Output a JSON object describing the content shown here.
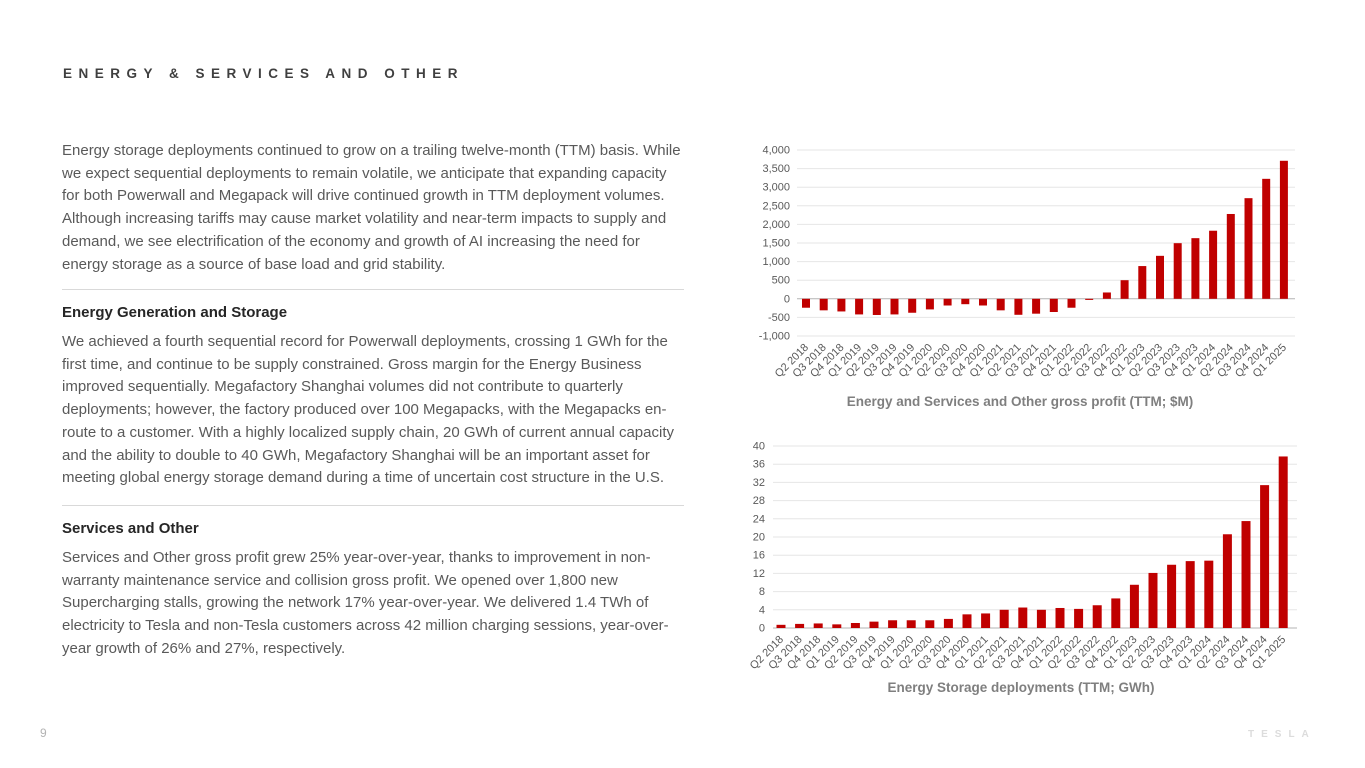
{
  "page": {
    "title": "ENERGY & SERVICES AND OTHER",
    "page_number": "9",
    "brand_wordmark": "TESLA"
  },
  "left_column": {
    "intro_paragraph": "Energy storage deployments continued to grow on a trailing twelve-month (TTM) basis. While we expect sequential deployments to remain volatile, we anticipate that expanding capacity for both Powerwall and Megapack will drive continued growth in TTM deployment volumes. Although increasing tariffs may cause market volatility and near-term impacts to supply and demand, we see electrification of the economy and growth of AI increasing the need for energy storage as a source of base load and grid stability.",
    "sections": [
      {
        "heading": "Energy Generation and Storage",
        "body": "We achieved a fourth sequential record for Powerwall deployments, crossing 1 GWh for the first time, and continue to be supply constrained. Gross margin for the Energy Business improved sequentially. Megafactory Shanghai volumes did not contribute to quarterly deployments; however, the factory produced over 100 Megapacks, with the Megapacks en-route to a customer. With a highly localized supply chain, 20 GWh of current annual capacity and the ability to double to 40 GWh, Megafactory Shanghai will be an important asset for meeting global energy storage demand during a time of uncertain cost structure in the U.S."
      },
      {
        "heading": "Services and Other",
        "body": "Services and Other gross profit grew 25% year-over-year, thanks to improvement in non-warranty maintenance service and collision gross profit. We opened over 1,800 new Supercharging stalls, growing the network 17% year-over-year. We delivered 1.4 TWh of electricity to Tesla and non-Tesla customers across 42 million charging sessions, year-over-year growth of 26% and 27%, respectively."
      }
    ]
  },
  "chart_data": [
    {
      "type": "bar",
      "title": "Energy and Services and Other gross profit (TTM; $M)",
      "categories": [
        "Q2 2018",
        "Q3 2018",
        "Q4 2018",
        "Q1 2019",
        "Q2 2019",
        "Q3 2019",
        "Q4 2019",
        "Q1 2020",
        "Q2 2020",
        "Q3 2020",
        "Q4 2020",
        "Q1 2021",
        "Q2 2021",
        "Q3 2021",
        "Q4 2021",
        "Q1 2022",
        "Q2 2022",
        "Q3 2022",
        "Q4 2022",
        "Q1 2023",
        "Q2 2023",
        "Q3 2023",
        "Q4 2023",
        "Q1 2024",
        "Q2 2024",
        "Q3 2024",
        "Q4 2024",
        "Q1 2025"
      ],
      "values": [
        -240,
        -310,
        -340,
        -420,
        -435,
        -420,
        -375,
        -285,
        -180,
        -145,
        -180,
        -310,
        -430,
        -400,
        -355,
        -240,
        -30,
        170,
        500,
        880,
        1155,
        1495,
        1630,
        1830,
        2280,
        2705,
        3225,
        3710
      ],
      "xlabel": "",
      "ylabel": "",
      "ylim": [
        -1000,
        4000
      ],
      "ytick_step": 500,
      "grid": true,
      "legend": "none",
      "bar_color": "#c00000",
      "axis_color": "#b3b3b3",
      "grid_color": "#e6e6e6",
      "text_color": "#595959",
      "title_color": "#7f7f7f"
    },
    {
      "type": "bar",
      "title": "Energy Storage deployments (TTM; GWh)",
      "categories": [
        "Q2 2018",
        "Q3 2018",
        "Q4 2018",
        "Q1 2019",
        "Q2 2019",
        "Q3 2019",
        "Q4 2019",
        "Q1 2020",
        "Q2 2020",
        "Q3 2020",
        "Q4 2020",
        "Q1 2021",
        "Q2 2021",
        "Q3 2021",
        "Q4 2021",
        "Q1 2022",
        "Q2 2022",
        "Q3 2022",
        "Q4 2022",
        "Q1 2023",
        "Q2 2023",
        "Q3 2023",
        "Q4 2023",
        "Q1 2024",
        "Q2 2024",
        "Q3 2024",
        "Q4 2024",
        "Q1 2025"
      ],
      "values": [
        0.7,
        0.9,
        1.0,
        0.8,
        1.1,
        1.4,
        1.7,
        1.7,
        1.7,
        2.0,
        3.0,
        3.2,
        4.0,
        4.5,
        4.0,
        4.4,
        4.2,
        5.0,
        6.5,
        9.5,
        12.1,
        13.9,
        14.7,
        14.8,
        20.6,
        23.5,
        31.4,
        37.7
      ],
      "xlabel": "",
      "ylabel": "",
      "ylim": [
        0,
        40
      ],
      "ytick_step": 4,
      "grid": true,
      "legend": "none",
      "bar_color": "#c00000",
      "axis_color": "#b3b3b3",
      "grid_color": "#e6e6e6",
      "text_color": "#595959",
      "title_color": "#7f7f7f"
    }
  ]
}
